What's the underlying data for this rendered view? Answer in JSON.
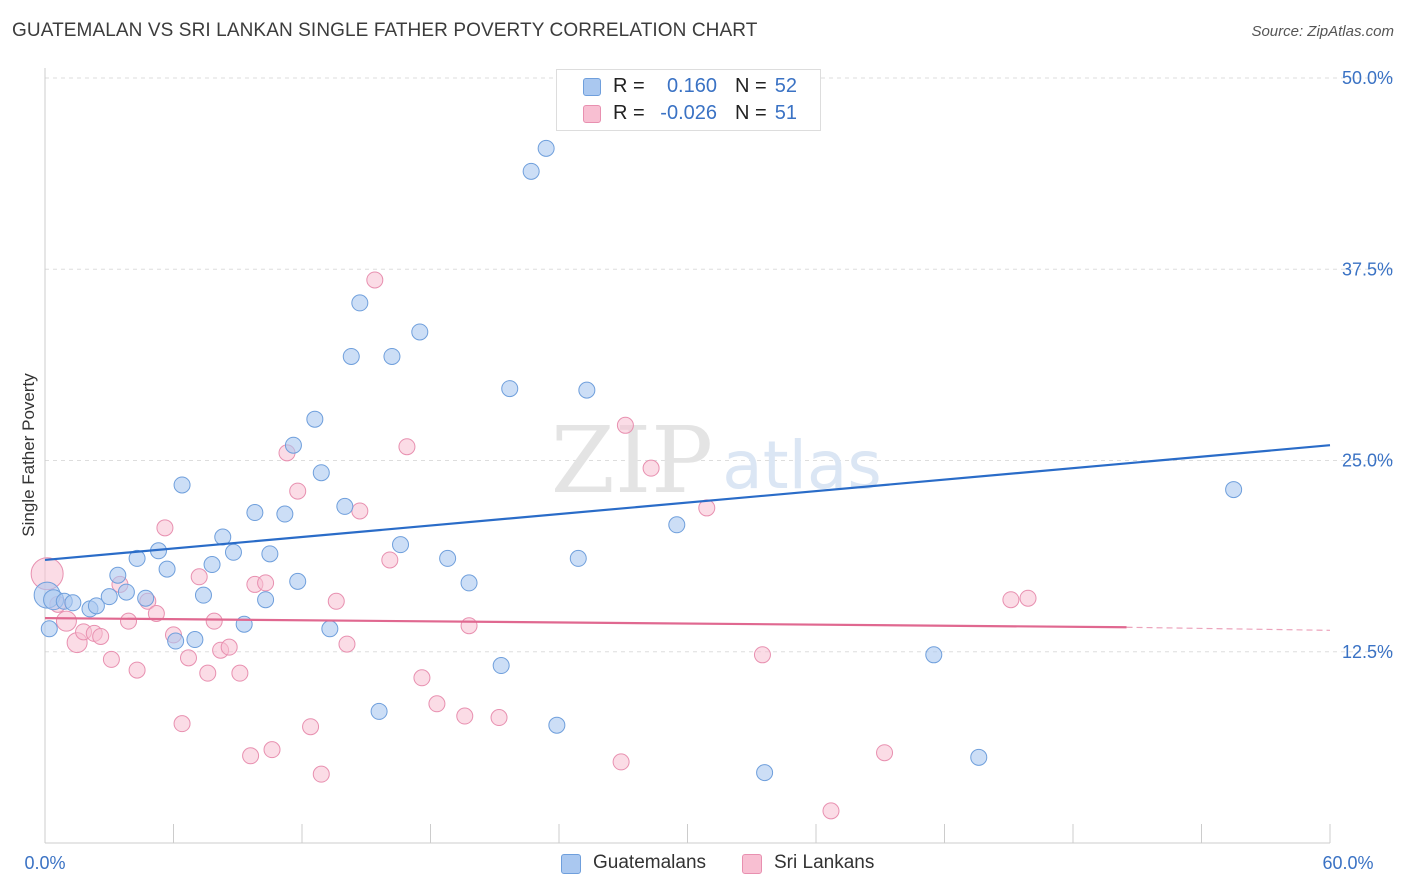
{
  "header": {
    "title": "GUATEMALAN VS SRI LANKAN SINGLE FATHER POVERTY CORRELATION CHART",
    "source": "Source: ZipAtlas.com"
  },
  "watermark": {
    "zip": "ZIP",
    "atlas": "atlas"
  },
  "legend_top": {
    "rows": [
      {
        "r_label": "R =",
        "r_value": "0.160",
        "n_label": "N =",
        "n_value": "52"
      },
      {
        "r_label": "R =",
        "r_value": "-0.026",
        "n_label": "N =",
        "n_value": "51"
      }
    ]
  },
  "legend_bottom": {
    "items": [
      {
        "label": "Guatemalans"
      },
      {
        "label": "Sri Lankans"
      }
    ]
  },
  "colors": {
    "blue_fill": "#aac8f0",
    "blue_stroke": "#6f9fdc",
    "blue_line": "#2a6cc8",
    "pink_fill": "#f8bfd2",
    "pink_stroke": "#e890b0",
    "pink_line": "#e06890",
    "axis_label": "#3a72c4",
    "grid": "#dddddd"
  },
  "chart_data": {
    "type": "scatter",
    "title": "GUATEMALAN VS SRI LANKAN SINGLE FATHER POVERTY CORRELATION CHART",
    "xlabel": "",
    "ylabel": "Single Father Poverty",
    "xlim": [
      0,
      60
    ],
    "ylim": [
      0,
      50
    ],
    "x_tick_labels": [
      "0.0%",
      "60.0%"
    ],
    "y_ticks": [
      12.5,
      25.0,
      37.5,
      50.0
    ],
    "y_tick_labels": [
      "12.5%",
      "25.0%",
      "37.5%",
      "50.0%"
    ],
    "grid": true,
    "series": [
      {
        "name": "Guatemalans",
        "color": "blue",
        "points": [
          [
            0.1,
            16.2
          ],
          [
            0.4,
            15.9
          ],
          [
            0.9,
            15.8
          ],
          [
            1.3,
            15.7
          ],
          [
            2.1,
            15.3
          ],
          [
            2.4,
            15.5
          ],
          [
            3.0,
            16.1
          ],
          [
            3.4,
            17.5
          ],
          [
            3.8,
            16.4
          ],
          [
            4.3,
            18.6
          ],
          [
            4.7,
            16.0
          ],
          [
            5.3,
            19.1
          ],
          [
            5.7,
            17.9
          ],
          [
            6.1,
            13.2
          ],
          [
            6.4,
            23.4
          ],
          [
            7.0,
            13.3
          ],
          [
            7.4,
            16.2
          ],
          [
            7.8,
            18.2
          ],
          [
            8.3,
            20.0
          ],
          [
            8.8,
            19.0
          ],
          [
            9.3,
            14.3
          ],
          [
            9.8,
            21.6
          ],
          [
            10.3,
            15.9
          ],
          [
            10.5,
            18.9
          ],
          [
            11.2,
            21.5
          ],
          [
            11.6,
            26.0
          ],
          [
            11.8,
            17.1
          ],
          [
            12.6,
            27.7
          ],
          [
            12.9,
            24.2
          ],
          [
            13.3,
            14.0
          ],
          [
            14.0,
            22.0
          ],
          [
            14.3,
            31.8
          ],
          [
            14.7,
            35.3
          ],
          [
            15.6,
            8.6
          ],
          [
            16.2,
            31.8
          ],
          [
            16.6,
            19.5
          ],
          [
            17.5,
            33.4
          ],
          [
            18.8,
            18.6
          ],
          [
            19.8,
            17.0
          ],
          [
            21.3,
            11.6
          ],
          [
            21.7,
            29.7
          ],
          [
            22.7,
            43.9
          ],
          [
            23.4,
            45.4
          ],
          [
            23.9,
            7.7
          ],
          [
            24.9,
            18.6
          ],
          [
            25.3,
            29.6
          ],
          [
            29.5,
            20.8
          ],
          [
            33.6,
            4.6
          ],
          [
            41.5,
            12.3
          ],
          [
            43.6,
            5.6
          ],
          [
            55.5,
            23.1
          ],
          [
            0.2,
            14.0
          ]
        ],
        "trend": {
          "x": [
            0,
            60
          ],
          "y": [
            18.5,
            26.0
          ]
        }
      },
      {
        "name": "Sri Lankans",
        "color": "pink",
        "points": [
          [
            0.1,
            17.6
          ],
          [
            0.6,
            15.6
          ],
          [
            1.0,
            14.5
          ],
          [
            1.5,
            13.1
          ],
          [
            1.8,
            13.8
          ],
          [
            2.3,
            13.7
          ],
          [
            2.6,
            13.5
          ],
          [
            3.1,
            12.0
          ],
          [
            3.5,
            16.9
          ],
          [
            3.9,
            14.5
          ],
          [
            4.3,
            11.3
          ],
          [
            4.8,
            15.8
          ],
          [
            5.2,
            15.0
          ],
          [
            5.6,
            20.6
          ],
          [
            6.0,
            13.6
          ],
          [
            6.4,
            7.8
          ],
          [
            6.7,
            12.1
          ],
          [
            7.2,
            17.4
          ],
          [
            7.6,
            11.1
          ],
          [
            7.9,
            14.5
          ],
          [
            8.2,
            12.6
          ],
          [
            8.6,
            12.8
          ],
          [
            9.1,
            11.1
          ],
          [
            9.6,
            5.7
          ],
          [
            9.8,
            16.9
          ],
          [
            10.3,
            17.0
          ],
          [
            10.6,
            6.1
          ],
          [
            11.3,
            25.5
          ],
          [
            11.8,
            23.0
          ],
          [
            12.4,
            7.6
          ],
          [
            12.9,
            4.5
          ],
          [
            13.6,
            15.8
          ],
          [
            14.1,
            13.0
          ],
          [
            14.7,
            21.7
          ],
          [
            15.4,
            36.8
          ],
          [
            16.1,
            18.5
          ],
          [
            16.9,
            25.9
          ],
          [
            17.6,
            10.8
          ],
          [
            18.3,
            9.1
          ],
          [
            19.6,
            8.3
          ],
          [
            19.8,
            14.2
          ],
          [
            21.2,
            8.2
          ],
          [
            26.9,
            5.3
          ],
          [
            27.1,
            27.3
          ],
          [
            28.3,
            24.5
          ],
          [
            30.9,
            21.9
          ],
          [
            33.5,
            12.3
          ],
          [
            36.7,
            2.1
          ],
          [
            39.2,
            5.9
          ],
          [
            45.1,
            15.9
          ],
          [
            45.9,
            16.0
          ]
        ],
        "trend": {
          "x": [
            0,
            50.5
          ],
          "y": [
            14.7,
            14.1
          ]
        },
        "trend_dashed": {
          "x": [
            50.5,
            60
          ],
          "y": [
            14.1,
            13.9
          ]
        }
      }
    ]
  }
}
